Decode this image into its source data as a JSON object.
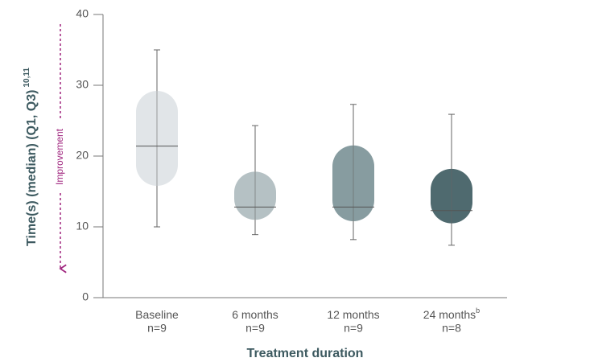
{
  "chart_data": {
    "type": "box",
    "y_label": "Time(s) (median) (Q1, Q3)",
    "y_label_superscript": "10,11",
    "annotation": "Improvement",
    "x_label": "Treatment duration",
    "categories": [
      "Baseline",
      "6 months",
      "12 months",
      "24 months"
    ],
    "category_superscripts": [
      null,
      null,
      null,
      "b"
    ],
    "sample_sizes": [
      "n=9",
      "n=9",
      "n=9",
      "n=8"
    ],
    "colors": [
      "#e1e5e8",
      "#b5c1c4",
      "#879ca0",
      "#4f6a6f"
    ],
    "max": [
      35,
      24.3,
      27.3,
      25.9
    ],
    "q3": [
      29.2,
      17.8,
      21.5,
      18.2
    ],
    "median": [
      21.4,
      12.8,
      12.8,
      12.3
    ],
    "q1": [
      15.8,
      11,
      10.8,
      10.5
    ],
    "min": [
      10,
      8.9,
      8.2,
      7.4
    ],
    "ylim": [
      0,
      40
    ],
    "yticks": [
      0,
      10,
      20,
      30,
      40
    ]
  }
}
